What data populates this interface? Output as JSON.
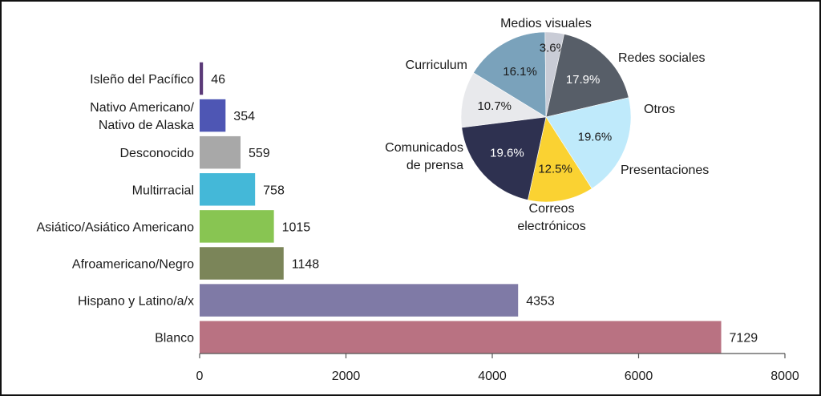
{
  "chart_data": [
    {
      "type": "bar",
      "orientation": "horizontal",
      "categories": [
        "Isleño del Pacífico",
        "Nativo Americano/\nNativo de Alaska",
        "Desconocido",
        "Multirracial",
        "Asiático/Asiático Americano",
        "Afroamericano/Negro",
        "Hispano y Latino/a/x",
        "Blanco"
      ],
      "values": [
        46,
        354,
        559,
        758,
        1015,
        1148,
        4353,
        7129
      ],
      "value_labels": [
        "46",
        "354",
        "559",
        "758",
        "1015",
        "1148",
        "4353",
        "7129"
      ],
      "colors": [
        "#5b3a78",
        "#4e56b4",
        "#a8a8a8",
        "#44b8d8",
        "#88c552",
        "#7b8559",
        "#7f7aa6",
        "#b97282"
      ],
      "xlim": [
        0,
        8000
      ],
      "xticks": [
        0,
        2000,
        4000,
        6000,
        8000
      ],
      "xtick_labels": [
        "0",
        "2000",
        "4000",
        "6000",
        "8000"
      ],
      "grid": false
    },
    {
      "type": "pie",
      "labels": [
        "Medios visuales",
        "Redes sociales",
        "Otros",
        "Presentaciones",
        "Correos\nelectrónicos",
        "Comunicados\nde prensa",
        "Curriculum"
      ],
      "values": [
        10.7,
        16.1,
        3.6,
        17.9,
        19.6,
        12.5,
        19.6
      ],
      "value_labels": [
        "10.7%",
        "16.1%",
        "3.6%",
        "17.9%",
        "19.6%",
        "12.5%",
        "19.6%"
      ],
      "colors": [
        "#e8e9ec",
        "#7aa2bb",
        "#c9ccd6",
        "#575e68",
        "#bfeafb",
        "#fad232",
        "#2e3150"
      ],
      "value_label_colors": [
        "#1a1a1a",
        "#1a1a1a",
        "#1a1a1a",
        "#ffffff",
        "#1a1a1a",
        "#1a1a1a",
        "#ffffff"
      ]
    }
  ]
}
